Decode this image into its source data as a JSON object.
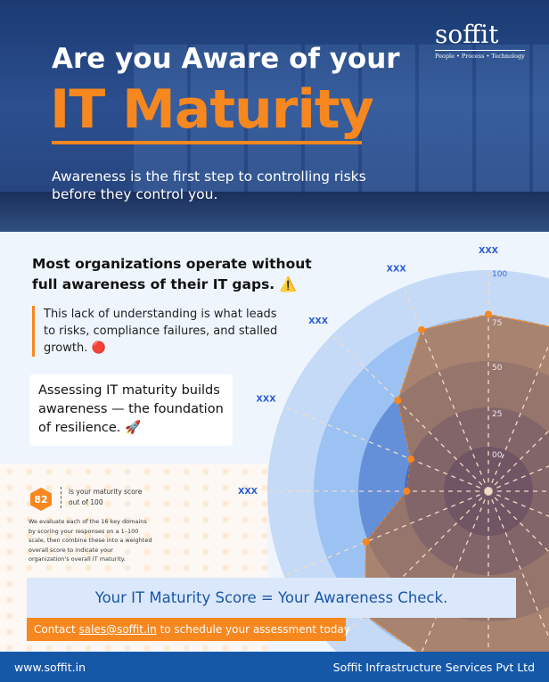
{
  "hero": {
    "title_line1": "Are you Aware of your",
    "title_line2": "IT Maturity",
    "subtitle": "Awareness is the first step to controlling risks before they control you.",
    "logo_text": "soffit",
    "logo_tagline": "People • Process • Technology"
  },
  "intro": {
    "heading": "Most organizations operate without full awareness of their IT gaps. ⚠️",
    "quote": "This lack of understanding is what leads to risks, compliance failures, and stalled growth. 🔴",
    "card": "Assessing IT maturity builds awareness — the foundation of resilience. 🚀"
  },
  "score": {
    "value": "82",
    "caption": "is your maturity score out of 100",
    "description": "We evaluate each of the 16 key domains by scoring your responses on a 1–100 scale, then combine these into a weighted overall score to indicate your organization's overall IT maturity."
  },
  "chart_data": {
    "type": "polar-area",
    "axes_count": 16,
    "ring_labels": [
      "00",
      "25",
      "50",
      "75",
      "100"
    ],
    "axis_labels": [
      "XXX",
      "XXX",
      "XXX",
      "XXX",
      "XXX"
    ],
    "values": [
      80,
      79,
      58,
      38,
      37,
      60,
      79,
      80,
      80,
      80,
      80,
      80,
      80,
      80,
      80,
      80
    ],
    "colors": {
      "rings": [
        "#c4daf7",
        "#9cc2f3",
        "#6a9fec",
        "#4a86e8"
      ],
      "fill": "#a87c62",
      "marker": "#f7871f"
    }
  },
  "banner": {
    "text": "Your IT Maturity Score = Your Awareness Check."
  },
  "cta": {
    "prefix": "Contact ",
    "email": "sales@soffit.in",
    "suffix": " to schedule your assessment today"
  },
  "footer": {
    "website": "www.soffit.in",
    "company": "Soffit Infrastructure Services Pvt Ltd"
  }
}
